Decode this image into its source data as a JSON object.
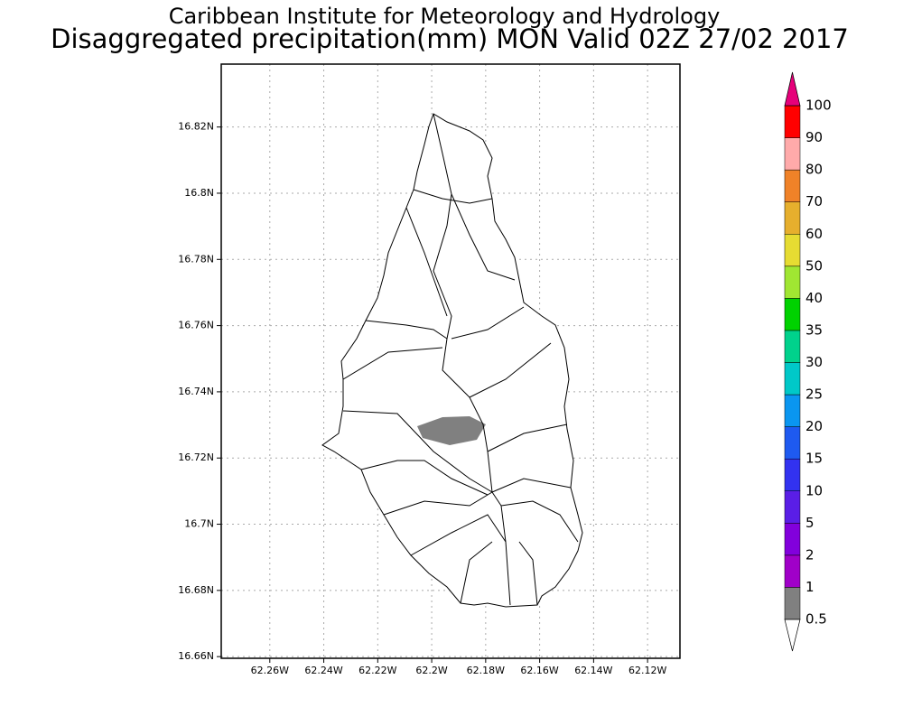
{
  "header": {
    "title": "Caribbean Institute for Meteorology and Hydrology",
    "subtitle": "Disaggregated precipitation(mm) MON Valid 02Z 27/02 2017"
  },
  "map": {
    "xlim": [
      -62.278,
      -62.108
    ],
    "ylim": [
      16.6595,
      16.839
    ],
    "grid": true,
    "xticks": [
      {
        "value": -62.26,
        "label": "62.26W"
      },
      {
        "value": -62.24,
        "label": "62.24W"
      },
      {
        "value": -62.22,
        "label": "62.22W"
      },
      {
        "value": -62.2,
        "label": "62.2W"
      },
      {
        "value": -62.18,
        "label": "62.18W"
      },
      {
        "value": -62.16,
        "label": "62.16W"
      },
      {
        "value": -62.14,
        "label": "62.14W"
      },
      {
        "value": -62.12,
        "label": "62.12W"
      }
    ],
    "yticks": [
      {
        "value": 16.66,
        "label": "16.66N"
      },
      {
        "value": 16.68,
        "label": "16.68N"
      },
      {
        "value": 16.7,
        "label": "16.7N"
      },
      {
        "value": 16.72,
        "label": "16.72N"
      },
      {
        "value": 16.74,
        "label": "16.74N"
      },
      {
        "value": 16.76,
        "label": "16.76N"
      },
      {
        "value": 16.78,
        "label": "16.78N"
      },
      {
        "value": 16.8,
        "label": "16.8N"
      },
      {
        "value": 16.82,
        "label": "16.82N"
      }
    ]
  },
  "colorbar": {
    "levels": [
      0.5,
      1,
      2,
      5,
      10,
      15,
      20,
      25,
      30,
      35,
      40,
      50,
      60,
      70,
      80,
      90,
      100
    ],
    "colors": [
      "#ffffff",
      "#808080",
      "#a000c8",
      "#8200dc",
      "#5a1ee6",
      "#3232f0",
      "#1e5af0",
      "#0a96f0",
      "#00c8c8",
      "#00d28c",
      "#00d200",
      "#a0e632",
      "#e6dc32",
      "#e6af2d",
      "#f08228",
      "#ffaaaa",
      "#ff0000",
      "#f04646",
      "#e6007a"
    ]
  }
}
